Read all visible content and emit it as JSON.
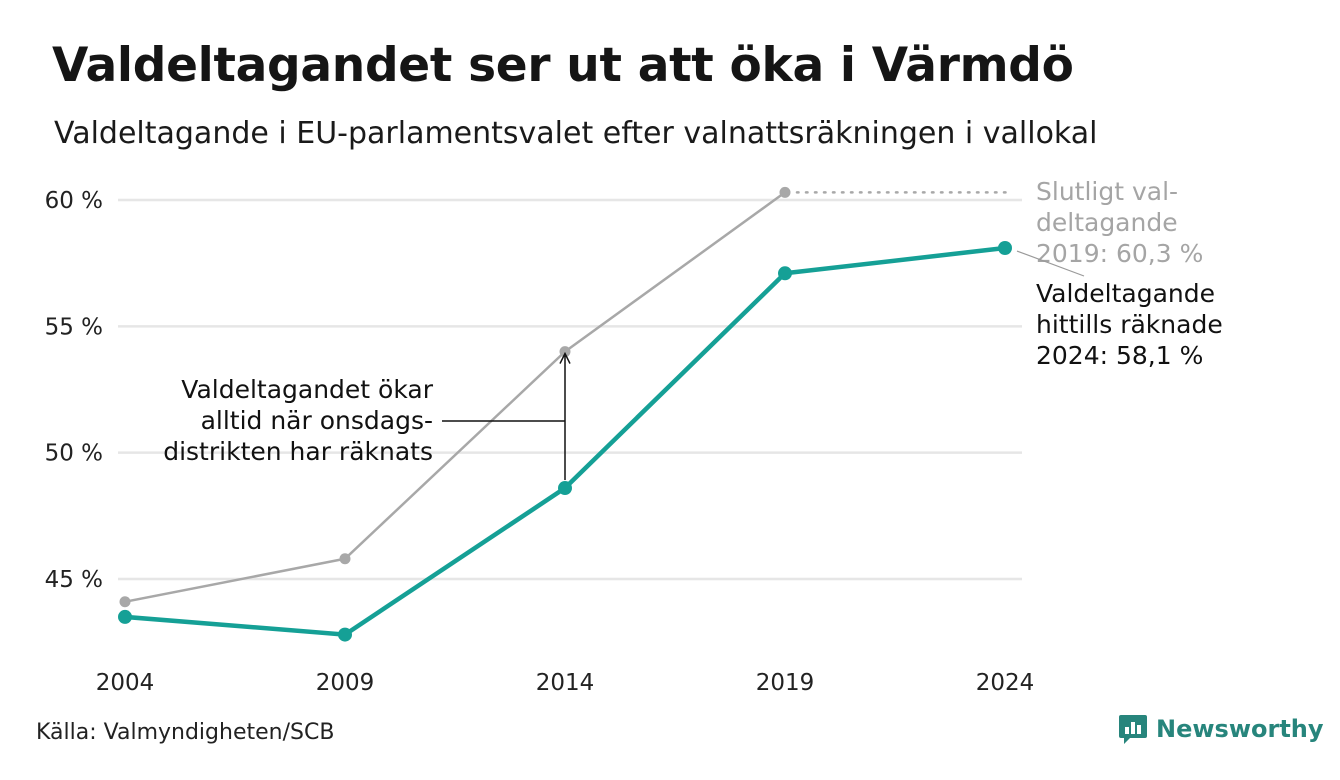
{
  "title": "Valdeltagandet ser ut att öka i Värmdö",
  "subtitle": "Valdeltagande i EU-parlamentsvalet efter valnattsräkningen i vallokal",
  "source": "Källa: Valmyndigheten/SCB",
  "brand": "Newsworthy",
  "colors": {
    "current": "#15a096",
    "final": "#a8a8a8",
    "brand": "#27857c"
  },
  "chart_data": {
    "type": "line",
    "x": [
      "2004",
      "2009",
      "2014",
      "2019",
      "2024"
    ],
    "y_tick_labels": [
      "60 %",
      "55 %",
      "50 %",
      "45 %"
    ],
    "y_ticks": [
      60,
      55,
      50,
      45
    ],
    "ylim": [
      42.5,
      60.4
    ],
    "grid": true,
    "series": [
      {
        "values": [
          44.1,
          45.8,
          54.0,
          60.3,
          null
        ]
      },
      {
        "values": [
          43.5,
          42.8,
          48.6,
          57.1,
          58.1
        ]
      }
    ],
    "annotations": {
      "increase": [
        "Valdeltagandet ökar",
        "alltid när onsdags-",
        "distrikten har räknats"
      ],
      "final": [
        "Slutligt val-",
        "deltagande",
        "2019: 60,3 %"
      ],
      "current": [
        "Valdeltagande",
        "hittills räknade",
        "2024: 58,1 %"
      ]
    }
  }
}
